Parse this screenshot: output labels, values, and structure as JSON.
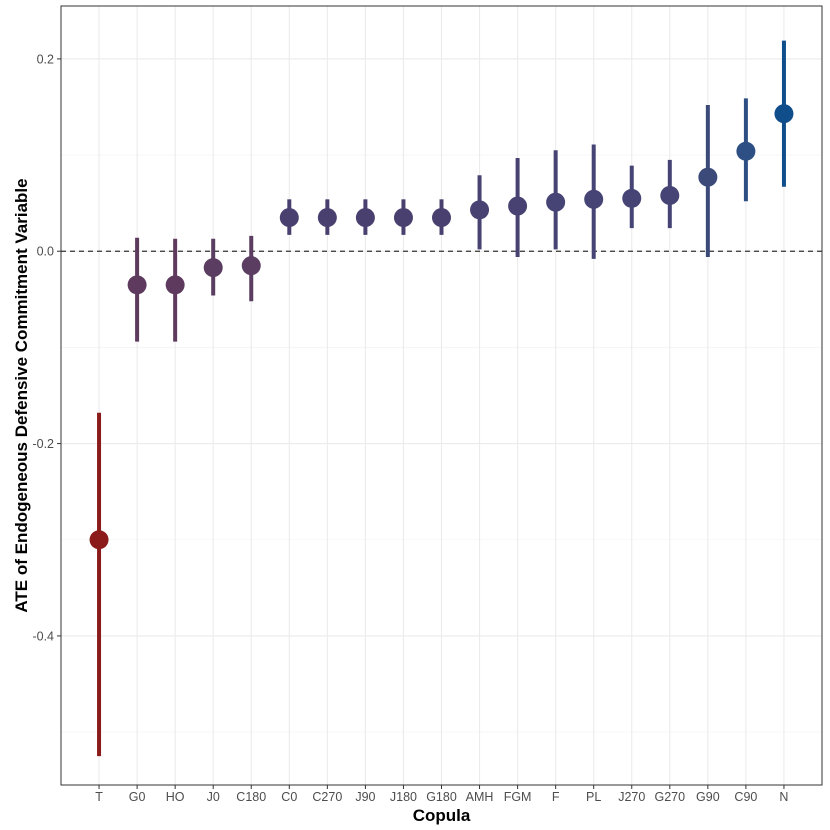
{
  "chart_data": {
    "type": "scatter",
    "subtype": "pointrange",
    "title": "",
    "xlabel": "Copula",
    "ylabel": "ATE of Endogeneous Defensive Commitment Variable",
    "ylim": [
      -0.555,
      0.255
    ],
    "yticks": [
      -0.4,
      -0.2,
      0.0,
      0.2
    ],
    "ytick_labels": [
      "-0.4",
      "-0.2",
      "0.0",
      "0.2"
    ],
    "reference_line": 0.0,
    "grid": true,
    "legend": "none",
    "categories": [
      "T",
      "G0",
      "HO",
      "J0",
      "C180",
      "C0",
      "C270",
      "J90",
      "J180",
      "G180",
      "AMH",
      "FGM",
      "F",
      "PL",
      "J270",
      "G270",
      "G90",
      "C90",
      "N"
    ],
    "estimates": [
      -0.3,
      -0.035,
      -0.035,
      -0.017,
      -0.015,
      0.035,
      0.035,
      0.035,
      0.035,
      0.035,
      0.043,
      0.047,
      0.051,
      0.054,
      0.055,
      0.058,
      0.077,
      0.104,
      0.143
    ],
    "lower": [
      -0.525,
      -0.094,
      -0.094,
      -0.046,
      -0.052,
      0.017,
      0.017,
      0.017,
      0.017,
      0.017,
      0.002,
      -0.006,
      0.002,
      -0.008,
      0.024,
      0.024,
      -0.006,
      0.052,
      0.067
    ],
    "upper": [
      -0.168,
      0.014,
      0.013,
      0.013,
      0.016,
      0.054,
      0.054,
      0.054,
      0.054,
      0.054,
      0.079,
      0.097,
      0.105,
      0.111,
      0.089,
      0.095,
      0.152,
      0.159,
      0.219
    ],
    "colors": [
      "#8b1a1a",
      "#5e3b5e",
      "#5e3b5e",
      "#5a3d60",
      "#5a3d60",
      "#4a4070",
      "#4a4070",
      "#4a4070",
      "#4a4070",
      "#4a4070",
      "#484272",
      "#484272",
      "#464375",
      "#464375",
      "#454475",
      "#454475",
      "#3c4a7a",
      "#2d4f84",
      "#104e8b"
    ]
  }
}
